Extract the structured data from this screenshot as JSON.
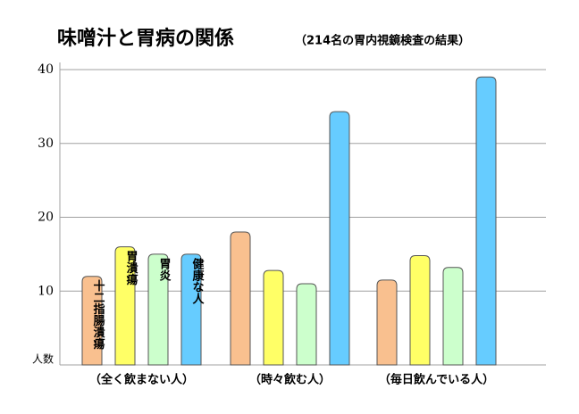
{
  "chart_data": {
    "type": "bar",
    "title": "味噌汁と胃病の関係",
    "subtitle": "（214名の胃内視鏡検査の結果）",
    "ylabel": "人数",
    "categories": [
      "（全く飲まない人）",
      "（時々飲む人）",
      "（毎日飲んでいる人）"
    ],
    "series": [
      {
        "name": "十二指腸潰瘍",
        "color": "#f9c08f",
        "values": [
          12,
          18,
          11.5
        ]
      },
      {
        "name": "胃潰瘍",
        "color": "#ffff66",
        "values": [
          16,
          12.8,
          14.8
        ]
      },
      {
        "name": "胃炎",
        "color": "#ccffcc",
        "values": [
          15,
          11,
          13.2
        ]
      },
      {
        "name": "健康な人",
        "color": "#66ccff",
        "values": [
          15,
          34.3,
          39
        ]
      }
    ],
    "ylim": [
      0,
      40
    ],
    "yticks": [
      10,
      20,
      30,
      40
    ],
    "grid": true
  }
}
